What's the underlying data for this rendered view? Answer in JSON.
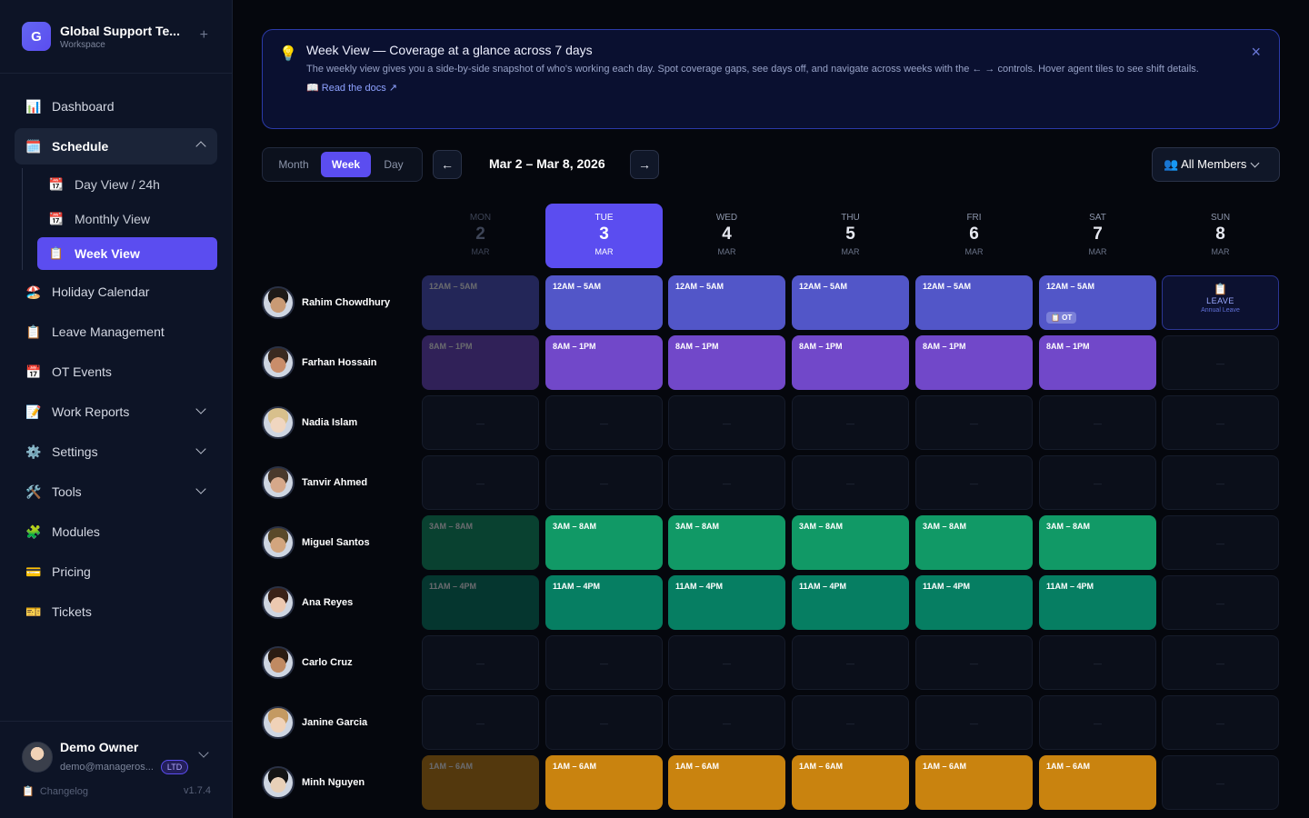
{
  "workspace": {
    "logo_letter": "G",
    "name": "Global Support Te...",
    "subtitle": "Workspace",
    "add_icon": "plus-icon"
  },
  "sidebar": {
    "items": [
      {
        "label": "Dashboard",
        "icon": "📊"
      },
      {
        "label": "Schedule",
        "icon": "🗓️",
        "active": true,
        "expanded": true
      },
      {
        "label": "Holiday Calendar",
        "icon": "🏖️"
      },
      {
        "label": "Leave Management",
        "icon": "📋"
      },
      {
        "label": "OT Events",
        "icon": "📅"
      },
      {
        "label": "Work Reports",
        "icon": "📝"
      },
      {
        "label": "Settings",
        "icon": "⚙️"
      },
      {
        "label": "Tools",
        "icon": "🛠️"
      },
      {
        "label": "Modules",
        "icon": "🧩"
      },
      {
        "label": "Pricing",
        "icon": "💳"
      },
      {
        "label": "Tickets",
        "icon": "🎫"
      }
    ],
    "schedule_sub": [
      {
        "label": "Day View / 24h",
        "icon": "📆"
      },
      {
        "label": "Monthly View",
        "icon": "📆"
      },
      {
        "label": "Week View",
        "icon": "📋",
        "active": true
      }
    ]
  },
  "user": {
    "name": "Demo Owner",
    "email": "demo@manageros...",
    "badge": "LTD",
    "changelog": "Changelog",
    "changelog_icon": "📋",
    "version": "v1.7.4"
  },
  "banner": {
    "icon": "💡",
    "title": "Week View — Coverage at a glance across 7 days",
    "description": "The weekly view gives you a side-by-side snapshot of who's working each day. Spot coverage gaps, see days off, and navigate across weeks with the ← → controls. Hover agent tiles to see shift details.",
    "link": "📖 Read the docs ↗",
    "close": "×"
  },
  "toolbar": {
    "modes": [
      "Month",
      "Week",
      "Day"
    ],
    "active_mode": "Week",
    "prev": "←",
    "next": "→",
    "range": "Mar 2 – Mar 8, 2026",
    "filter": "👥 All Members"
  },
  "days": [
    {
      "name": "MON",
      "num": "2",
      "month": "MAR",
      "state": "past"
    },
    {
      "name": "TUE",
      "num": "3",
      "month": "MAR",
      "state": "today"
    },
    {
      "name": "WED",
      "num": "4",
      "month": "MAR"
    },
    {
      "name": "THU",
      "num": "5",
      "month": "MAR"
    },
    {
      "name": "FRI",
      "num": "6",
      "month": "MAR"
    },
    {
      "name": "SAT",
      "num": "7",
      "month": "MAR"
    },
    {
      "name": "SUN",
      "num": "8",
      "month": "MAR"
    }
  ],
  "empty_mark": "—",
  "agents": [
    {
      "name": "Rahim Chowdhury",
      "skin": "#c99a74",
      "hair": "#1e1a17",
      "shift": "12AM – 5AM",
      "color": "c-indigo",
      "days": [
        1,
        1,
        1,
        1,
        1,
        1,
        0
      ],
      "ot_day": 5,
      "ot_label": "📋 OT",
      "leave_day": 6,
      "leave": {
        "icon": "📋",
        "label": "LEAVE",
        "sub": "Annual Leave"
      }
    },
    {
      "name": "Farhan Hossain",
      "skin": "#c98d6a",
      "hair": "#3a2a20",
      "shift": "8AM – 1PM",
      "color": "c-purple",
      "days": [
        1,
        1,
        1,
        1,
        1,
        1,
        0
      ]
    },
    {
      "name": "Nadia Islam",
      "skin": "#f0d6c0",
      "hair": "#d8c08c",
      "shift": "",
      "color": "",
      "days": [
        0,
        0,
        0,
        0,
        0,
        0,
        0
      ]
    },
    {
      "name": "Tanvir Ahmed",
      "skin": "#d6a88a",
      "hair": "#4a3a2c",
      "shift": "",
      "color": "",
      "days": [
        0,
        0,
        0,
        0,
        0,
        0,
        0
      ]
    },
    {
      "name": "Miguel Santos",
      "skin": "#d2a57e",
      "hair": "#5a4a2a",
      "shift": "3AM – 8AM",
      "color": "c-green",
      "days": [
        1,
        1,
        1,
        1,
        1,
        1,
        0
      ]
    },
    {
      "name": "Ana Reyes",
      "skin": "#ecc8b0",
      "hair": "#3a2218",
      "shift": "11AM – 4PM",
      "color": "c-teal",
      "days": [
        1,
        1,
        1,
        1,
        1,
        1,
        0
      ]
    },
    {
      "name": "Carlo Cruz",
      "skin": "#c08a62",
      "hair": "#2a1c12",
      "shift": "",
      "color": "",
      "days": [
        0,
        0,
        0,
        0,
        0,
        0,
        0
      ]
    },
    {
      "name": "Janine Garcia",
      "skin": "#f0d2b8",
      "hair": "#c49a62",
      "shift": "",
      "color": "",
      "days": [
        0,
        0,
        0,
        0,
        0,
        0,
        0
      ]
    },
    {
      "name": "Minh Nguyen",
      "skin": "#e8d0b8",
      "hair": "#141414",
      "shift": "1AM – 6AM",
      "color": "c-amber",
      "days": [
        1,
        1,
        1,
        1,
        1,
        1,
        0
      ]
    }
  ]
}
